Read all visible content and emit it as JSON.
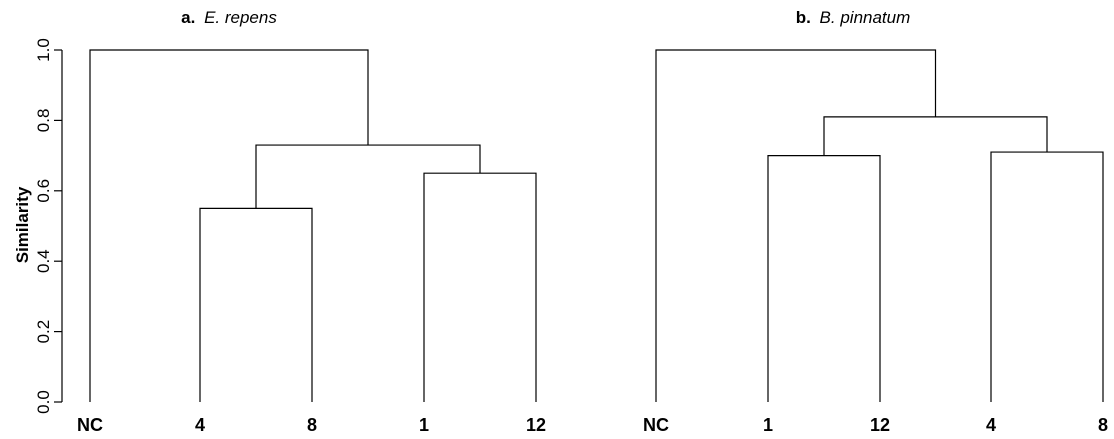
{
  "chart_data": [
    {
      "type": "dendrogram",
      "title_prefix": "a.",
      "title_species": "E. repens",
      "ylabel": "Similarity",
      "ylim": [
        0,
        1
      ],
      "yticks": [
        "0.0",
        "0.2",
        "0.4",
        "0.6",
        "0.8",
        "1.0"
      ],
      "ytick_values": [
        0,
        0.2,
        0.4,
        0.6,
        0.8,
        1.0
      ],
      "leaves": [
        "NC",
        "4",
        "8",
        "1",
        "12"
      ],
      "merges": [
        {
          "left": "leaf:1",
          "right": "leaf:2",
          "height": 0.55
        },
        {
          "left": "leaf:3",
          "right": "leaf:4",
          "height": 0.65
        },
        {
          "left": "node:0",
          "right": "node:1",
          "height": 0.73
        },
        {
          "left": "leaf:0",
          "right": "node:2",
          "height": 1.0
        }
      ]
    },
    {
      "type": "dendrogram",
      "title_prefix": "b.",
      "title_species": "B. pinnatum",
      "ylim": [
        0,
        1
      ],
      "leaves": [
        "NC",
        "1",
        "12",
        "4",
        "8"
      ],
      "merges": [
        {
          "left": "leaf:1",
          "right": "leaf:2",
          "height": 0.7
        },
        {
          "left": "leaf:3",
          "right": "leaf:4",
          "height": 0.71
        },
        {
          "left": "node:0",
          "right": "node:1",
          "height": 0.81
        },
        {
          "left": "leaf:0",
          "right": "node:2",
          "height": 1.0
        }
      ]
    }
  ]
}
